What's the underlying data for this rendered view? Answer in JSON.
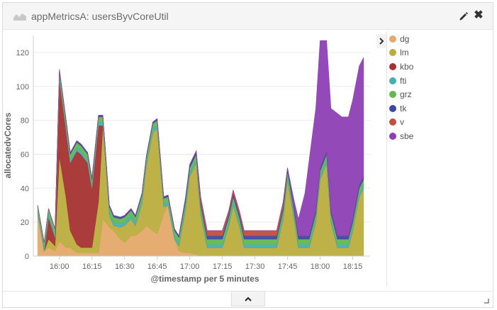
{
  "panel": {
    "title": "appMetricsA: usersByvCoreUtil",
    "vis_icon": "area-chart-icon",
    "edit_icon": "pencil-icon",
    "close_icon": "close-icon",
    "close_glyph": "✖",
    "legend_toggle_icon": "chevron-right-icon",
    "collapse_icon": "chevron-up-icon",
    "resize_icon": "resize-corner-icon"
  },
  "chart_data": {
    "type": "area",
    "stacked": true,
    "xlabel": "@timestamp per 5 minutes",
    "ylabel": "allocatedvCores",
    "ylim": [
      0,
      130
    ],
    "yticks": [
      0,
      20,
      40,
      60,
      80,
      100,
      120
    ],
    "xlim": [
      "15:48",
      "18:23"
    ],
    "xticks": [
      "16:00",
      "16:15",
      "16:30",
      "16:45",
      "17:00",
      "17:15",
      "17:30",
      "17:45",
      "18:00",
      "18:15"
    ],
    "grid": "horizontal",
    "legend_position": "right",
    "x": [
      "15:50",
      "15:53",
      "15:55",
      "15:58",
      "16:00",
      "16:03",
      "16:05",
      "16:08",
      "16:10",
      "16:13",
      "16:15",
      "16:18",
      "16:20",
      "16:23",
      "16:25",
      "16:28",
      "16:30",
      "16:33",
      "16:35",
      "16:38",
      "16:40",
      "16:43",
      "16:45",
      "16:48",
      "16:50",
      "16:53",
      "16:55",
      "16:58",
      "17:00",
      "17:03",
      "17:05",
      "17:08",
      "17:10",
      "17:13",
      "17:15",
      "17:18",
      "17:20",
      "17:23",
      "17:25",
      "17:28",
      "17:30",
      "17:33",
      "17:35",
      "17:38",
      "17:40",
      "17:43",
      "17:45",
      "17:48",
      "17:50",
      "17:53",
      "17:55",
      "17:58",
      "18:00",
      "18:03",
      "18:05",
      "18:08",
      "18:10",
      "18:13",
      "18:15",
      "18:18",
      "18:20"
    ],
    "series": [
      {
        "name": "dg",
        "color": "#e5a96b",
        "values": [
          25,
          3,
          5,
          3,
          9,
          5,
          5,
          2,
          2,
          2,
          2,
          2,
          22,
          17,
          15,
          10,
          8,
          12,
          12,
          15,
          18,
          15,
          13,
          25,
          30,
          10,
          3,
          2,
          2,
          1,
          0,
          0,
          0,
          0,
          0,
          0,
          0,
          0,
          0,
          0,
          0,
          0,
          0,
          0,
          0,
          0,
          0,
          0,
          0,
          0,
          0,
          0,
          0,
          0,
          0,
          0,
          0,
          0,
          0,
          0,
          0
        ]
      },
      {
        "name": "lm",
        "color": "#b9ad3e",
        "values": [
          0,
          0,
          5,
          3,
          50,
          30,
          10,
          5,
          3,
          3,
          3,
          30,
          55,
          7,
          3,
          7,
          10,
          10,
          6,
          16,
          35,
          58,
          62,
          4,
          0,
          0,
          3,
          25,
          45,
          54,
          25,
          5,
          5,
          5,
          5,
          18,
          30,
          17,
          5,
          5,
          5,
          5,
          5,
          5,
          5,
          22,
          45,
          22,
          5,
          5,
          5,
          20,
          45,
          55,
          20,
          5,
          5,
          5,
          15,
          35,
          40
        ]
      },
      {
        "name": "kbo",
        "color": "#a63232",
        "values": [
          0,
          0,
          13,
          5,
          45,
          40,
          40,
          55,
          55,
          50,
          35,
          45,
          0,
          0,
          0,
          0,
          0,
          0,
          0,
          0,
          0,
          0,
          0,
          0,
          0,
          0,
          0,
          0,
          0,
          0,
          0,
          0,
          0,
          0,
          0,
          0,
          0,
          0,
          0,
          0,
          0,
          0,
          0,
          0,
          0,
          0,
          0,
          0,
          0,
          0,
          0,
          0,
          0,
          0,
          0,
          0,
          0,
          0,
          0,
          0,
          0
        ]
      },
      {
        "name": "fti",
        "color": "#45b0b0",
        "values": [
          2,
          2,
          2,
          2,
          2,
          2,
          2,
          2,
          2,
          2,
          2,
          2,
          2,
          2,
          2,
          2,
          2,
          2,
          2,
          2,
          2,
          2,
          2,
          2,
          2,
          2,
          2,
          2,
          2,
          2,
          2,
          2,
          2,
          2,
          2,
          2,
          2,
          2,
          2,
          2,
          2,
          2,
          2,
          2,
          2,
          2,
          2,
          2,
          2,
          2,
          2,
          2,
          2,
          2,
          2,
          2,
          2,
          2,
          2,
          2,
          2
        ]
      },
      {
        "name": "grz",
        "color": "#63b84f",
        "values": [
          3,
          3,
          3,
          3,
          3,
          3,
          3,
          3,
          3,
          3,
          3,
          3,
          3,
          3,
          3,
          3,
          3,
          3,
          3,
          3,
          3,
          3,
          3,
          3,
          3,
          3,
          3,
          3,
          3,
          3,
          3,
          3,
          3,
          3,
          3,
          3,
          3,
          3,
          3,
          3,
          3,
          3,
          3,
          3,
          3,
          3,
          3,
          3,
          3,
          3,
          3,
          3,
          3,
          3,
          3,
          3,
          3,
          3,
          3,
          3,
          3
        ]
      },
      {
        "name": "tk",
        "color": "#3f47a3",
        "values": [
          0,
          0,
          0,
          0,
          1,
          1,
          1,
          1,
          1,
          1,
          1,
          1,
          1,
          1,
          1,
          1,
          1,
          1,
          1,
          1,
          1,
          1,
          1,
          1,
          1,
          1,
          1,
          2,
          2,
          2,
          2,
          2,
          2,
          2,
          2,
          2,
          2,
          2,
          2,
          2,
          2,
          2,
          2,
          2,
          2,
          2,
          2,
          2,
          2,
          2,
          2,
          2,
          2,
          2,
          2,
          2,
          2,
          2,
          2,
          2,
          2
        ]
      },
      {
        "name": "v",
        "color": "#c24e3e",
        "values": [
          0,
          0,
          0,
          0,
          0,
          0,
          0,
          0,
          0,
          0,
          0,
          0,
          0,
          0,
          0,
          0,
          0,
          0,
          0,
          0,
          0,
          0,
          0,
          0,
          0,
          0,
          0,
          0,
          0,
          0,
          3,
          3,
          3,
          3,
          3,
          2,
          2,
          2,
          3,
          3,
          3,
          3,
          3,
          3,
          3,
          3,
          0,
          0,
          0,
          0,
          0,
          0,
          0,
          0,
          0,
          0,
          0,
          0,
          0,
          0,
          0
        ]
      },
      {
        "name": "sbe",
        "color": "#8e3fb5",
        "values": [
          0,
          0,
          0,
          0,
          0,
          0,
          0,
          0,
          0,
          0,
          0,
          0,
          0,
          0,
          0,
          0,
          0,
          0,
          0,
          0,
          0,
          0,
          0,
          0,
          0,
          0,
          0,
          0,
          0,
          0,
          0,
          0,
          0,
          0,
          0,
          0,
          0,
          0,
          0,
          0,
          0,
          0,
          0,
          0,
          0,
          0,
          0,
          4,
          10,
          25,
          45,
          60,
          75,
          65,
          60,
          72,
          70,
          70,
          70,
          70,
          70
        ]
      }
    ]
  }
}
